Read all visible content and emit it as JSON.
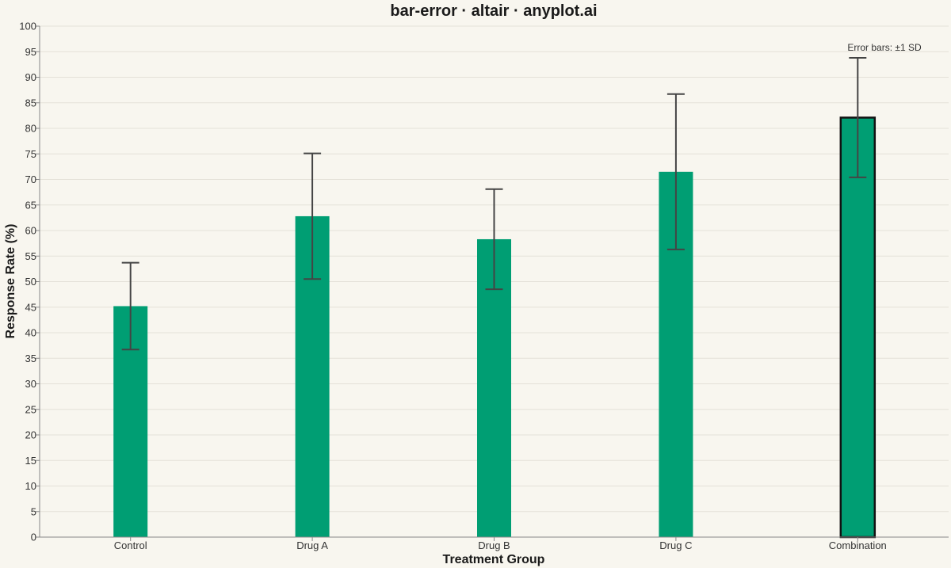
{
  "chart_data": {
    "type": "bar",
    "title": "bar-error · altair · anyplot.ai",
    "xlabel": "Treatment Group",
    "ylabel": "Response Rate (%)",
    "categories": [
      "Control",
      "Drug A",
      "Drug B",
      "Drug C",
      "Combination"
    ],
    "values": [
      45.2,
      62.8,
      58.3,
      71.5,
      82.1
    ],
    "errors": [
      8.5,
      12.3,
      9.8,
      15.2,
      11.7
    ],
    "highlight_category": "Combination",
    "ylim": [
      0,
      100
    ],
    "yticks": [
      0,
      5,
      10,
      15,
      20,
      25,
      30,
      35,
      40,
      45,
      50,
      55,
      60,
      65,
      70,
      75,
      80,
      85,
      90,
      95,
      100
    ],
    "grid": true,
    "annotation": "Error bars: ±1 SD",
    "colors": {
      "bar": "#009E73",
      "highlight_stroke": "#111111",
      "error_bar": "#444444",
      "background": "#F8F6EF"
    }
  }
}
